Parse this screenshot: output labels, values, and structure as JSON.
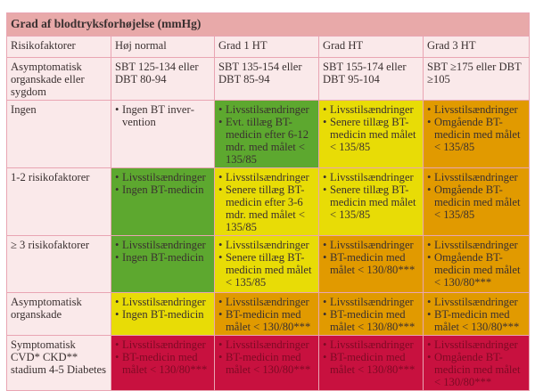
{
  "title": "Grad af blodtryksforhøjelse (mmHg)",
  "colors": {
    "green": "#5da82f",
    "yellow": "#e8dc06",
    "orange": "#e19a00",
    "red": "#c8113f",
    "header": "#e8a9a9",
    "light": "#fae9ea"
  },
  "header": [
    "Risikofaktorer",
    "Høj normal",
    "Grad 1 HT",
    "Grad HT",
    "Grad 3 HT"
  ],
  "ranges": [
    "Asymptomatisk organskade eller sygdom",
    "SBT 125-134 eller DBT 80-94",
    "SBT 135-154 eller DBT 85-94",
    "SBT 155-174 eller DBT 95-104",
    "SBT ≥175 eller DBT ≥105"
  ],
  "rows": [
    {
      "label": "Ingen",
      "cells": [
        {
          "color": "light",
          "items": [
            "Ingen BT inver­vention"
          ]
        },
        {
          "color": "green",
          "items": [
            "Livsstilsændringer",
            "Evt. tillæg BT-medicin efter 6-12 mdr. med målet < 135/85"
          ]
        },
        {
          "color": "yellow",
          "items": [
            "Livsstilsændringer",
            "Senere tillæg BT-medicin med målet < 135/85"
          ]
        },
        {
          "color": "orange",
          "items": [
            "Livsstilsændringer",
            "Omgående BT-medicin med målet < 135/85"
          ]
        }
      ]
    },
    {
      "label": "1-2 risikofaktorer",
      "cells": [
        {
          "color": "green",
          "items": [
            "Livsstilsændringer",
            "Ingen BT-medicin"
          ]
        },
        {
          "color": "yellow",
          "items": [
            "Livsstilsændringer",
            "Senere tillæg BT-medicin efter 3-6 mdr. med målet < 135/85"
          ]
        },
        {
          "color": "yellow",
          "items": [
            "Livsstilsændringer",
            "Senere tillæg BT-medicin med målet < 135/85"
          ]
        },
        {
          "color": "orange",
          "items": [
            "Livsstilsændringer",
            "Omgående BT-medicin med målet < 135/85"
          ]
        }
      ]
    },
    {
      "label": "≥ 3 risikofaktorer",
      "cells": [
        {
          "color": "green",
          "items": [
            "Livsstilsændringer",
            "Ingen BT-medicin"
          ]
        },
        {
          "color": "yellow",
          "items": [
            "Livsstilsændringer",
            "Senere tillæg BT-medicin med målet < 135/85"
          ]
        },
        {
          "color": "orange",
          "items": [
            "Livsstilsændringer",
            "BT-medicin med målet < 130/80***"
          ]
        },
        {
          "color": "orange",
          "items": [
            "Livsstilsændringer",
            "Omgående BT-medicin med målet < 130/80***"
          ]
        }
      ]
    },
    {
      "label": "Asymptomatisk organskade",
      "cells": [
        {
          "color": "yellow",
          "items": [
            "Livsstilsændringer",
            "Ingen BT-medicin"
          ]
        },
        {
          "color": "orange",
          "items": [
            "Livsstilsændringer",
            "BT-medicin med målet < 130/80***"
          ]
        },
        {
          "color": "orange",
          "items": [
            "Livsstilsændringer",
            "BT-medicin med målet < 130/80***"
          ]
        },
        {
          "color": "orange",
          "items": [
            "Livsstilsændringer",
            "BT-medicin med målet < 130/80***"
          ]
        }
      ]
    },
    {
      "label": "Symptomatisk CVD* CKD** stadium 4-5 Diabetes",
      "cells": [
        {
          "color": "red",
          "items": [
            "Livsstilsændringer",
            "BT-medicin med målet < 130/80***"
          ]
        },
        {
          "color": "red",
          "items": [
            "Livsstilsændringer",
            "BT-medicin med målet < 130/80***"
          ]
        },
        {
          "color": "red",
          "items": [
            "Livsstilsændringer",
            "BT-medicin med målet < 130/80***"
          ]
        },
        {
          "color": "red",
          "items": [
            "Livsstilsændringer",
            "Omgående BT-medicin med målet < 130/80***"
          ]
        }
      ]
    }
  ]
}
